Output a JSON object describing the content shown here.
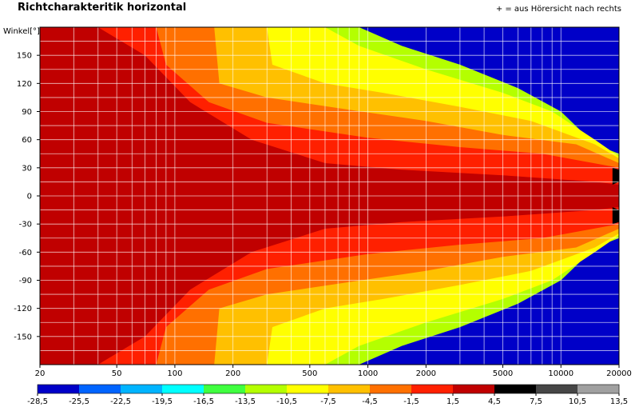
{
  "title": "Richtcharakteritik horizontal",
  "note": "+ = aus Hörersicht nach rechts",
  "chart_data": {
    "type": "heatmap",
    "title": "Richtcharakteritik horizontal",
    "ylabel": "Winkel[°]",
    "xscale": "log",
    "xlim": [
      20,
      20000
    ],
    "ylim": [
      -180,
      180
    ],
    "x_ticks": [
      20,
      50,
      100,
      200,
      500,
      1000,
      2000,
      5000,
      10000,
      20000
    ],
    "y_ticks": [
      150,
      120,
      90,
      60,
      30,
      0,
      -30,
      -60,
      -90,
      -120,
      -150
    ],
    "grid": true,
    "colorbar": {
      "placement": "bottom",
      "ticks": [
        "-28,5",
        "-25,5",
        "-22,5",
        "-19,5",
        "-16,5",
        "-13,5",
        "-10,5",
        "-7,5",
        "-4,5",
        "-1,5",
        "1,5",
        "4,5",
        "7,5",
        "10,5",
        "13,5"
      ],
      "colors": [
        "#0000c8",
        "#0064ff",
        "#00b4ff",
        "#00ffff",
        "#40ff40",
        "#b4ff00",
        "#ffff00",
        "#ffc000",
        "#ff7000",
        "#ff2000",
        "#c00000",
        "#000000",
        "#464646",
        "#a0a0a0",
        "#dcdcdc"
      ]
    },
    "level_colors": {
      "-13.5": "#40ff40",
      "-10.5": "#b4ff00",
      "-7.5": "#ffff00",
      "-4.5": "#ffc000",
      "-1.5": "#ff7000",
      "1.5": "#ff2000",
      "4.5": "#c00000",
      "7.5": "#000000"
    },
    "boundaries_hz": [
      {
        "level": -28.5,
        "points": [
          [
            20,
            180
          ],
          [
            500,
            180
          ],
          [
            900,
            175
          ],
          [
            1500,
            165
          ],
          [
            3000,
            150
          ],
          [
            6000,
            130
          ],
          [
            10000,
            100
          ],
          [
            15000,
            70
          ],
          [
            20000,
            50
          ],
          [
            20000,
            -50
          ],
          [
            15000,
            -70
          ],
          [
            10000,
            -100
          ],
          [
            6000,
            -130
          ],
          [
            3000,
            -150
          ],
          [
            1500,
            -165
          ],
          [
            900,
            -175
          ],
          [
            500,
            -180
          ],
          [
            20,
            -180
          ]
        ]
      },
      {
        "level": -13.5,
        "points": [
          [
            20,
            180
          ],
          [
            900,
            180
          ],
          [
            1500,
            160
          ],
          [
            3000,
            140
          ],
          [
            6000,
            115
          ],
          [
            10000,
            90
          ],
          [
            15000,
            55
          ],
          [
            20000,
            45
          ],
          [
            20000,
            -45
          ],
          [
            15000,
            -55
          ],
          [
            10000,
            -90
          ],
          [
            6000,
            -115
          ],
          [
            3000,
            -140
          ],
          [
            1500,
            -160
          ],
          [
            900,
            -180
          ],
          [
            20,
            -180
          ]
        ]
      },
      {
        "level": -10.5,
        "points": [
          [
            20,
            180
          ],
          [
            600,
            180
          ],
          [
            900,
            160
          ],
          [
            2000,
            135
          ],
          [
            5000,
            110
          ],
          [
            9000,
            90
          ],
          [
            15000,
            60
          ],
          [
            20000,
            42
          ],
          [
            20000,
            -42
          ],
          [
            15000,
            -60
          ],
          [
            9000,
            -90
          ],
          [
            5000,
            -110
          ],
          [
            2000,
            -135
          ],
          [
            900,
            -160
          ],
          [
            600,
            -180
          ],
          [
            20,
            -180
          ]
        ]
      },
      {
        "level": -7.5,
        "points": [
          [
            20,
            180
          ],
          [
            300,
            180
          ],
          [
            320,
            140
          ],
          [
            600,
            120
          ],
          [
            1200,
            110
          ],
          [
            3000,
            95
          ],
          [
            7000,
            80
          ],
          [
            15000,
            55
          ],
          [
            20000,
            40
          ],
          [
            20000,
            -40
          ],
          [
            15000,
            -55
          ],
          [
            7000,
            -80
          ],
          [
            3000,
            -95
          ],
          [
            1200,
            -110
          ],
          [
            600,
            -120
          ],
          [
            320,
            -140
          ],
          [
            300,
            -180
          ],
          [
            20,
            -180
          ]
        ]
      },
      {
        "level": -4.5,
        "points": [
          [
            20,
            180
          ],
          [
            160,
            180
          ],
          [
            170,
            120
          ],
          [
            300,
            105
          ],
          [
            800,
            92
          ],
          [
            2000,
            80
          ],
          [
            5000,
            65
          ],
          [
            12000,
            55
          ],
          [
            20000,
            35
          ],
          [
            20000,
            -35
          ],
          [
            12000,
            -55
          ],
          [
            5000,
            -65
          ],
          [
            2000,
            -80
          ],
          [
            800,
            -92
          ],
          [
            300,
            -105
          ],
          [
            170,
            -120
          ],
          [
            160,
            -180
          ],
          [
            20,
            -180
          ]
        ]
      },
      {
        "level": -1.5,
        "points": [
          [
            20,
            180
          ],
          [
            80,
            180
          ],
          [
            90,
            140
          ],
          [
            150,
            100
          ],
          [
            300,
            78
          ],
          [
            1000,
            62
          ],
          [
            3000,
            52
          ],
          [
            8000,
            45
          ],
          [
            20000,
            30
          ],
          [
            20000,
            -30
          ],
          [
            8000,
            -45
          ],
          [
            3000,
            -52
          ],
          [
            1000,
            -62
          ],
          [
            300,
            -78
          ],
          [
            150,
            -100
          ],
          [
            90,
            -140
          ],
          [
            80,
            -180
          ],
          [
            20,
            -180
          ]
        ]
      },
      {
        "level": 1.5,
        "points": [
          [
            20,
            180
          ],
          [
            40,
            180
          ],
          [
            70,
            150
          ],
          [
            120,
            100
          ],
          [
            250,
            60
          ],
          [
            600,
            35
          ],
          [
            1500,
            28
          ],
          [
            5000,
            22
          ],
          [
            15000,
            15
          ],
          [
            20000,
            12
          ],
          [
            20000,
            -12
          ],
          [
            15000,
            -15
          ],
          [
            5000,
            -22
          ],
          [
            1500,
            -28
          ],
          [
            600,
            -35
          ],
          [
            250,
            -60
          ],
          [
            120,
            -100
          ],
          [
            70,
            -150
          ],
          [
            40,
            -180
          ],
          [
            20,
            -180
          ]
        ]
      },
      {
        "level": 4.5,
        "points": [
          [
            18500,
            30
          ],
          [
            20000,
            28
          ],
          [
            20000,
            15
          ],
          [
            18500,
            12
          ]
        ]
      },
      {
        "level": 4.5,
        "points": [
          [
            18500,
            -12
          ],
          [
            20000,
            -15
          ],
          [
            20000,
            -28
          ],
          [
            18500,
            -30
          ]
        ]
      }
    ]
  }
}
